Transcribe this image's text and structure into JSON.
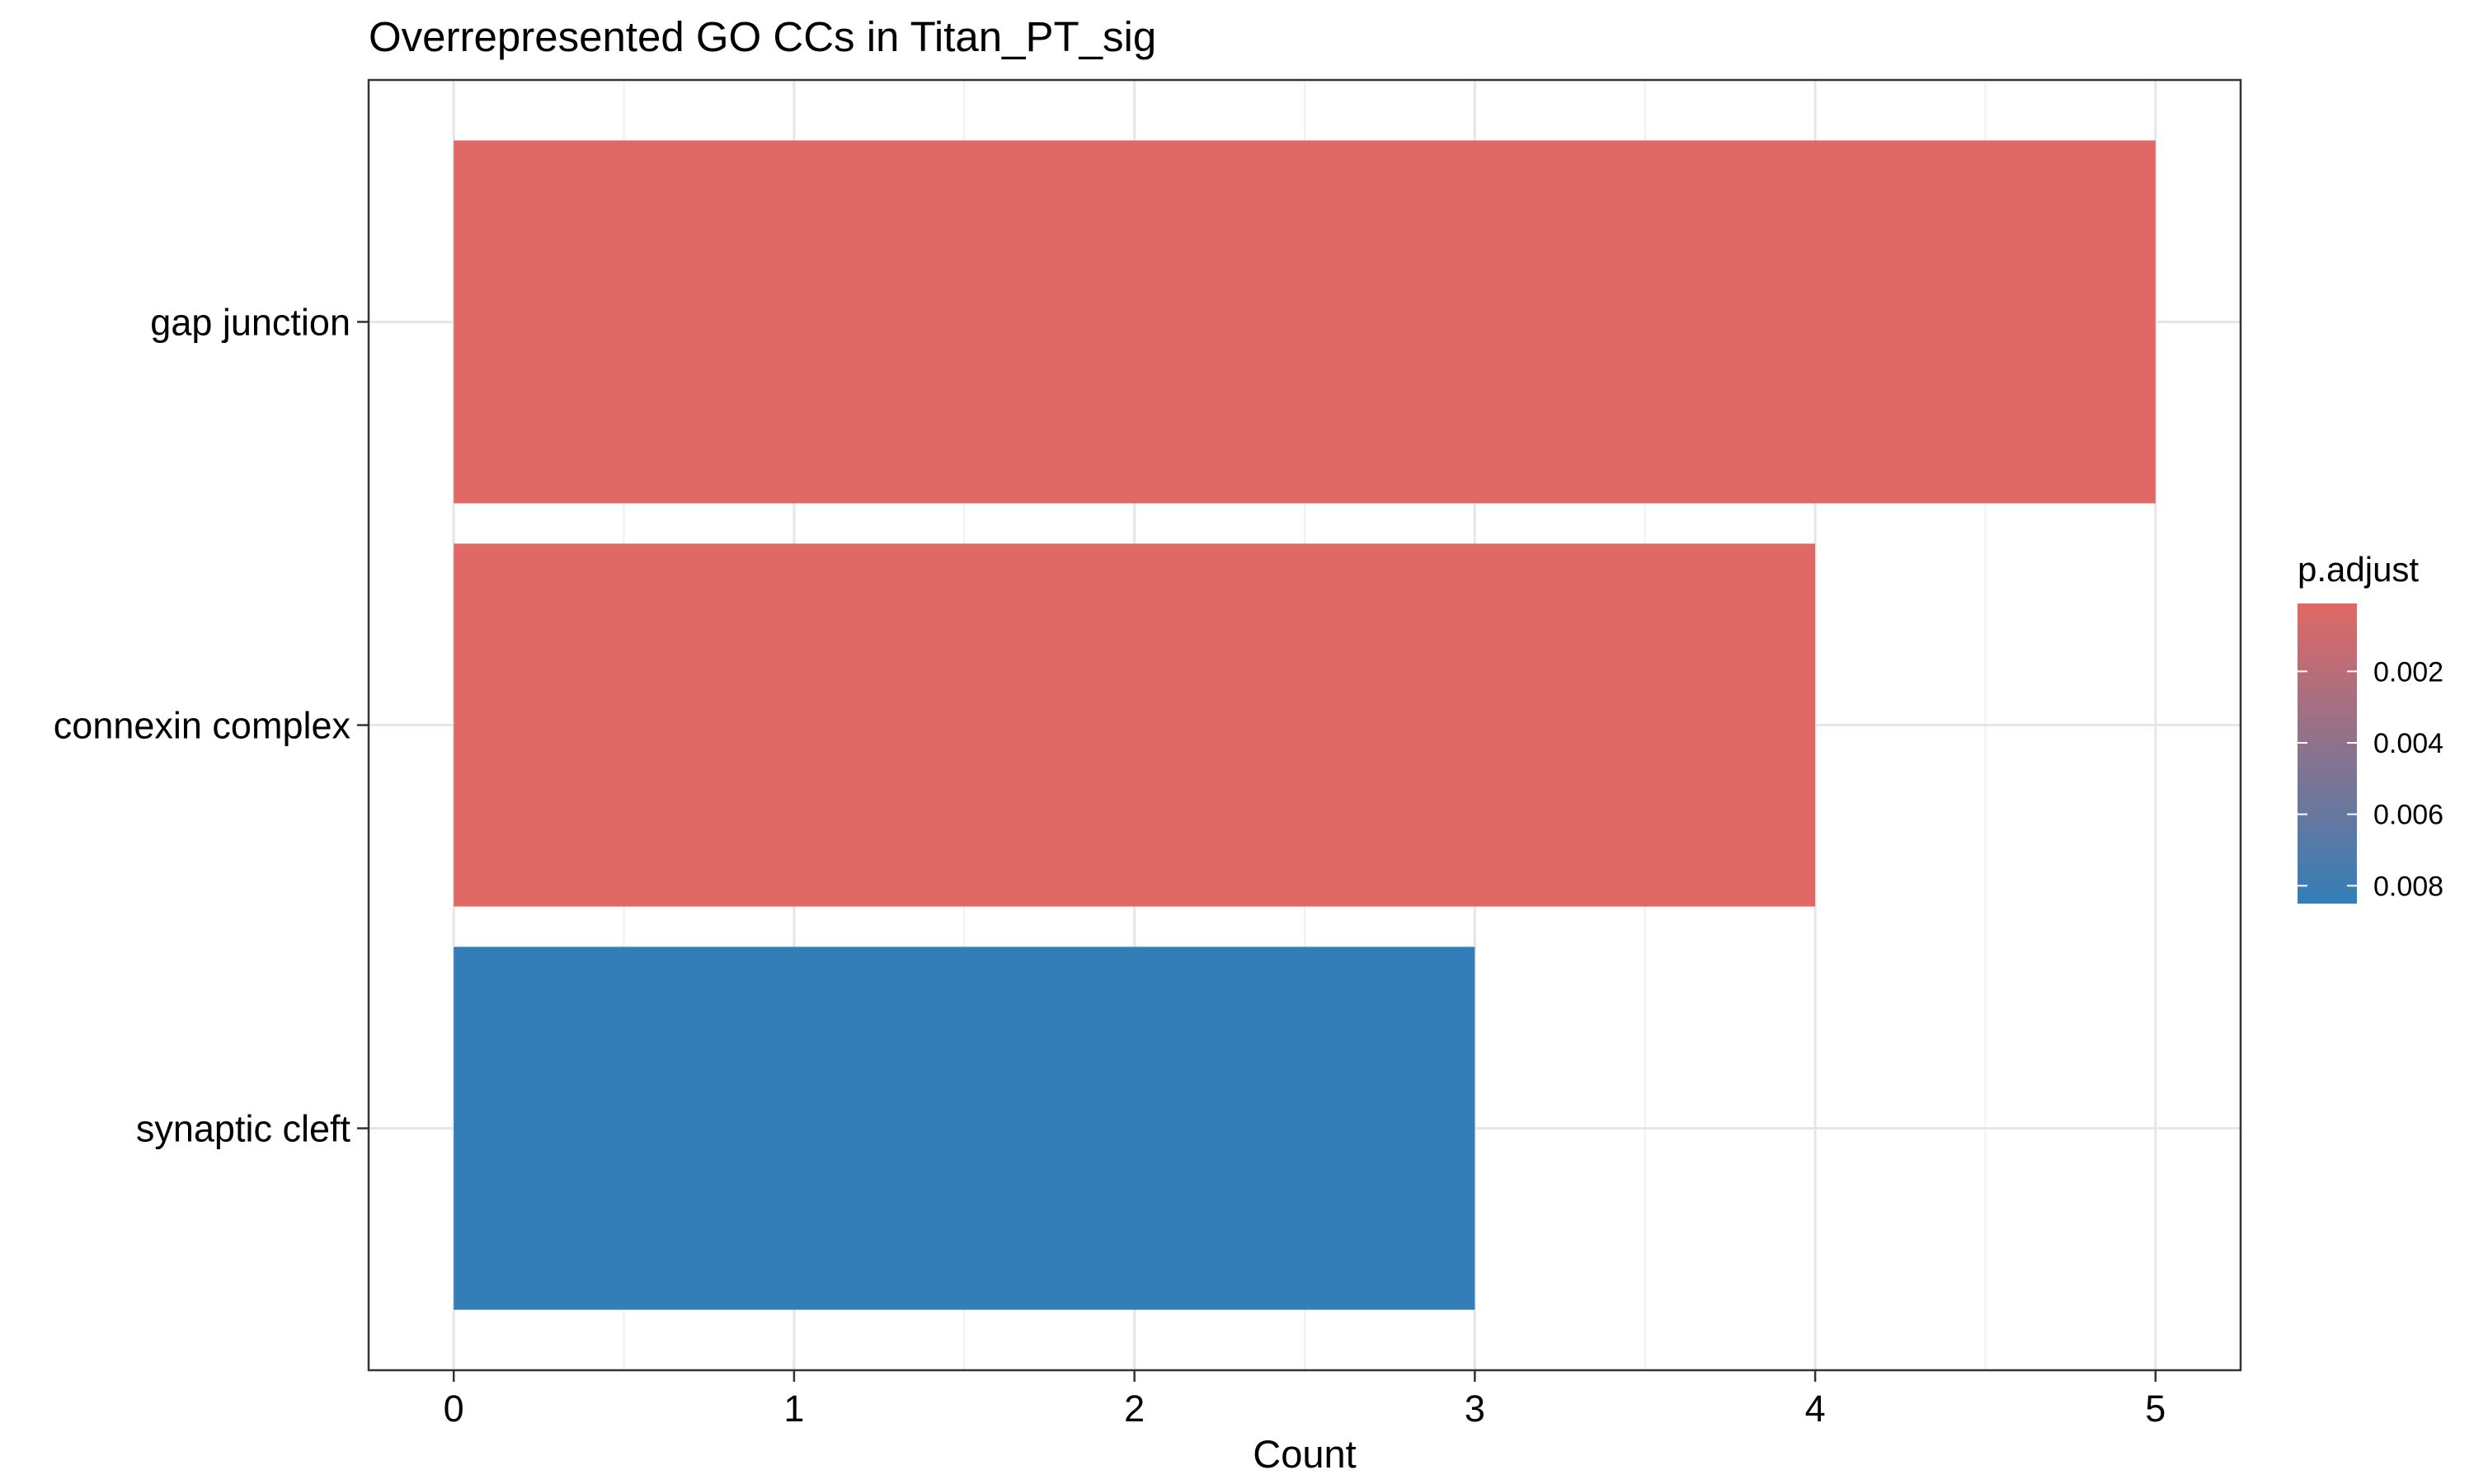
{
  "chart_data": {
    "type": "bar",
    "orientation": "horizontal",
    "title": "Overrepresented GO CCs in Titan_PT_sig",
    "xlabel": "Count",
    "ylabel": "",
    "xlim": [
      0,
      5
    ],
    "xticks": [
      "0",
      "1",
      "2",
      "3",
      "4",
      "5"
    ],
    "grid": true,
    "categories": [
      "gap junction",
      "connexin complex",
      "synaptic cleft"
    ],
    "values": [
      5,
      4,
      3
    ],
    "p_adjust": [
      0.0001,
      0.0001,
      0.0085
    ],
    "legend": {
      "title": "p.adjust",
      "position": "right",
      "labels": [
        "0.002",
        "0.004",
        "0.006",
        "0.008"
      ],
      "values": [
        0.002,
        0.004,
        0.006,
        0.008
      ],
      "range": [
        0.0001,
        0.0085
      ],
      "color_low": "#E06865",
      "color_high": "#337EB8"
    }
  }
}
